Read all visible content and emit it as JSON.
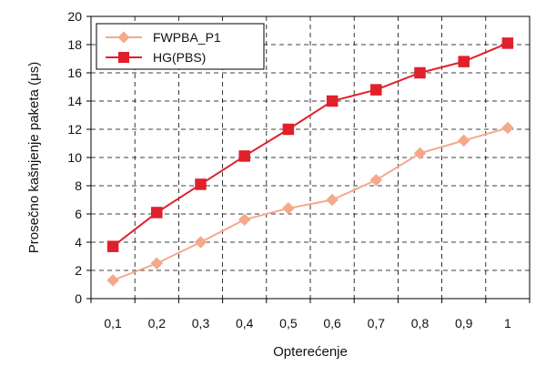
{
  "chart_data": {
    "type": "line",
    "x": [
      "0,1",
      "0,2",
      "0,3",
      "0,4",
      "0,5",
      "0,6",
      "0,7",
      "0,8",
      "0,9",
      "1"
    ],
    "xlabel": "Opterećenje",
    "ylabel": "Prosečno kašnjenje paketa (μs)",
    "ylim": [
      0,
      20
    ],
    "yticks": [
      0,
      2,
      4,
      6,
      8,
      10,
      12,
      14,
      16,
      18,
      20
    ],
    "grid": true,
    "legend_position": "top-left",
    "series": [
      {
        "name": "FWPBA_P1",
        "marker": "diamond",
        "color": "#f4a98c",
        "values": [
          1.3,
          2.5,
          4.0,
          5.6,
          6.4,
          7.0,
          8.4,
          10.3,
          11.2,
          12.1
        ]
      },
      {
        "name": "HG(PBS)",
        "marker": "square",
        "color": "#e0202a",
        "values": [
          3.7,
          6.1,
          8.1,
          10.1,
          12.0,
          14.0,
          14.8,
          16.0,
          16.8,
          18.1
        ]
      }
    ]
  }
}
